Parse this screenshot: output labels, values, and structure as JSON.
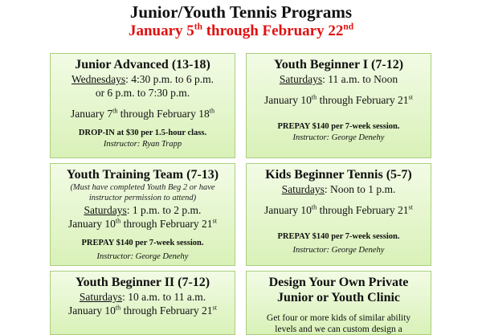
{
  "header": {
    "title": "Junior/Youth Tennis Programs",
    "subtitle_start": "January 5",
    "subtitle_sup1": "th",
    "subtitle_mid": " through February 22",
    "subtitle_sup2": "nd"
  },
  "programs": [
    {
      "name": "Junior Advanced (13-18)",
      "day": "Wednesdays",
      "time": ": 4:30 p.m. to 6 p.m.",
      "time2": "or 6 p.m. to 7:30 p.m.",
      "date_a": "January 7",
      "sup_a": "th",
      "date_b": " through February 18",
      "sup_b": "th",
      "price": "DROP-IN at $30 per 1.5-hour class.",
      "instructor": "Instructor: Ryan Trapp"
    },
    {
      "name": "Youth Beginner I (7-12)",
      "day": "Saturdays",
      "time": ": 11 a.m. to Noon",
      "date_a": "January 10",
      "sup_a": "th",
      "date_b": " through February 21",
      "sup_b": "st",
      "price": "PREPAY $140 per 7-week session.",
      "instructor": "Instructor: George Denehy"
    },
    {
      "name": "Youth Training Team (7-13)",
      "note": "(Must have completed Youth Beg 2 or have instructor permission to attend)",
      "day": "Saturdays",
      "time": ": 1 p.m. to 2 p.m.",
      "date_a": "January 10",
      "sup_a": "th",
      "date_b": " through February 21",
      "sup_b": "st",
      "price": "PREPAY $140 per 7-week session.",
      "instructor": "Instructor: George Denehy"
    },
    {
      "name": "Kids Beginner Tennis (5-7)",
      "day": "Saturdays",
      "time": ": Noon to 1 p.m.",
      "date_a": "January 10",
      "sup_a": "th",
      "date_b": " through February 21",
      "sup_b": "st",
      "price": "PREPAY $140 per 7-week session.",
      "instructor": "Instructor: George Denehy"
    },
    {
      "name": "Youth Beginner II (7-12)",
      "day": "Saturdays",
      "time": ": 10 a.m. to 11 a.m.",
      "date_a": "January 10",
      "sup_a": "th",
      "date_b": " through February 21",
      "sup_b": "st"
    },
    {
      "name": "Design Your Own Private Junior or Youth Clinic",
      "desc": "Get four or more kids of similar ability levels and we can custom design a clinic"
    }
  ]
}
